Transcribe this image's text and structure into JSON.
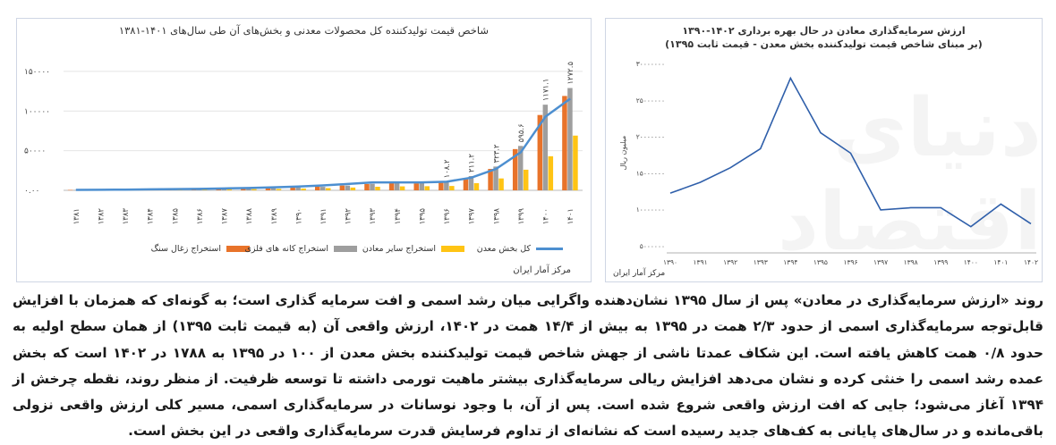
{
  "left_chart": {
    "title": "شاخص قیمت تولیدکننده کل محصولات معدنی و بخش‌های آن طی سال‌های ۱۴۰۱-۱۳۸۱",
    "source": "مرکز آمار ایران",
    "y_tick_labels": [
      "۰.۰۰",
      "۵۰۰۰۰",
      "۱۰۰۰۰۰",
      "۱۵۰۰۰۰"
    ],
    "y_tick_values": [
      0,
      500,
      1000,
      1500
    ],
    "ylim": [
      0,
      1600
    ],
    "categories": [
      "۱۳۸۱",
      "۱۳۸۲",
      "۱۳۸۳",
      "۱۳۸۴",
      "۱۳۸۵",
      "۱۳۸۶",
      "۱۳۸۷",
      "۱۳۸۸",
      "۱۳۸۹",
      "۱۳۹۰",
      "۱۳۹۱",
      "۱۳۹۲",
      "۱۳۹۳",
      "۱۳۹۴",
      "۱۳۹۵",
      "۱۳۹۶",
      "۱۳۹۷",
      "۱۳۹۸",
      "۱۳۹۹",
      "۱۴۰۰",
      "۱۴۰۱"
    ],
    "colors": {
      "coal": "#e8732a",
      "metal": "#9e9e9e",
      "other": "#ffc414",
      "total": "#4d8fd0"
    }
  },
  "chart_data": [
    {
      "type": "bar",
      "title": "شاخص قیمت تولیدکننده کل محصولات معدنی و بخش‌های آن طی سال‌های ۱۴۰۱-۱۳۸۱",
      "categories": [
        "۱۳۸۱",
        "۱۳۸۲",
        "۱۳۸۳",
        "۱۳۸۴",
        "۱۳۸۵",
        "۱۳۸۶",
        "۱۳۸۷",
        "۱۳۸۸",
        "۱۳۸۹",
        "۱۳۹۰",
        "۱۳۹۱",
        "۱۳۹۲",
        "۱۳۹۳",
        "۱۳۹۴",
        "۱۳۹۵",
        "۱۳۹۶",
        "۱۳۹۷",
        "۱۳۹۸",
        "۱۳۹۹",
        "۱۴۰۰",
        "۱۴۰۱"
      ],
      "series": [
        {
          "name": "استخراج زغال سنگ",
          "type": "bar",
          "values": [
            5,
            6,
            7,
            9,
            11,
            14,
            18,
            22,
            28,
            35,
            45,
            60,
            80,
            90,
            88,
            95,
            140,
            270,
            520,
            950,
            1190
          ]
        },
        {
          "name": "استخراج کانه های فلزی",
          "type": "bar",
          "values": [
            4,
            5,
            6,
            8,
            10,
            13,
            17,
            21,
            27,
            34,
            44,
            60,
            82,
            95,
            98,
            108,
            180,
            300,
            560,
            1080,
            1290
          ]
        },
        {
          "name": "استخراج سایر معادن",
          "type": "bar",
          "values": [
            3,
            4,
            5,
            6,
            8,
            10,
            12,
            15,
            18,
            22,
            28,
            35,
            45,
            50,
            52,
            55,
            90,
            150,
            260,
            430,
            690
          ]
        },
        {
          "name": "کل بخش معدن",
          "type": "line",
          "values": [
            6,
            7,
            9,
            12,
            15,
            19,
            24,
            30,
            38,
            48,
            62,
            80,
            100,
            100,
            100,
            109,
            160,
            270,
            480,
            930,
            1155
          ]
        }
      ],
      "data_labels": [
        {
          "category": "۱۳۹۶",
          "label": "۱۰۸.۲"
        },
        {
          "category": "۱۳۹۷",
          "label": "۲۱۱.۲"
        },
        {
          "category": "۱۳۹۸",
          "label": "۳۲۳.۲"
        },
        {
          "category": "۱۳۹۹",
          "label": "۵۹۵.۶"
        },
        {
          "category": "۱۴۰۰",
          "label": "۱۱۷۱.۱"
        },
        {
          "category": "۱۴۰۱",
          "label": "۱۲۷۲.۵"
        }
      ],
      "ylim": [
        0,
        1600
      ],
      "legend": "bottom"
    },
    {
      "type": "line",
      "title": "ارزش سرمایه‌گذاری معادن در حال بهره برداری ۱۴۰۲-۱۳۹۰",
      "subtitle": "(بر مبنای شاخص قیمت تولیدکننده بخش معدن - قیمت ثابت ۱۳۹۵)",
      "categories": [
        "۱۳۹۰",
        "۱۳۹۱",
        "۱۳۹۲",
        "۱۳۹۳",
        "۱۳۹۴",
        "۱۳۹۵",
        "۱۳۹۶",
        "۱۳۹۷",
        "۱۳۹۸",
        "۱۳۹۹",
        "۱۴۰۰",
        "۱۴۰۱",
        "۱۴۰۲"
      ],
      "series": [
        {
          "name": "",
          "values": [
            12200000,
            13700000,
            15700000,
            18300000,
            28000000,
            20500000,
            17700000,
            9900000,
            10200000,
            10200000,
            7600000,
            10700000,
            8000000
          ]
        }
      ],
      "ylabel": "میلیون ریال",
      "y_tick_labels": [
        "۵۰۰۰۰۰۰",
        "۱۰۰۰۰۰۰۰",
        "۱۵۰۰۰۰۰۰",
        "۲۰۰۰۰۰۰۰",
        "۲۵۰۰۰۰۰۰",
        "۳۰۰۰۰۰۰۰"
      ],
      "y_tick_values": [
        5000000,
        10000000,
        15000000,
        20000000,
        25000000,
        30000000
      ],
      "ylim": [
        4000000,
        31000000
      ],
      "color": "#2f5faa",
      "source": "مرکز آمار ایران"
    }
  ],
  "right_chart": {
    "title": "ارزش سرمایه‌گذاری معادن در حال بهره برداری ۱۴۰۲-۱۳۹۰",
    "subtitle": "(بر مبنای شاخص قیمت تولیدکننده بخش معدن - قیمت ثابت ۱۳۹۵)",
    "ylabel": "میلیون ریال",
    "source": "مرکز آمار ایران"
  },
  "watermark": "دنیای اقتصاد",
  "paragraph": "روند «ارزش سرمایه‌گذاری در معادن» پس از سال ۱۳۹۵ نشان‌دهنده واگرایی میان رشد اسمی و افت سرمایه گذاری است؛ به گونه‌ای که همزمان با افزایش قابل‌توجه سرمایه‌گذاری اسمی از حدود ۲/۳ همت در ۱۳۹۵ به بیش از ۱۴/۴ همت در ۱۴۰۲، ارزش واقعی آن (به قیمت ثابت ۱۳۹۵) از همان سطح اولیه به حدود ۰/۸ همت کاهش یافته است. این شکاف عمدتا ناشی از جهش شاخص قیمت تولیدکننده بخش معدن از ۱۰۰ در ۱۳۹۵ به ۱۷۸۸ در ۱۴۰۲ است که بخش عمده رشد اسمی را خنثی کرده و نشان می‌دهد افزایش ریالی سرمایه‌گذاری بیشتر ماهیت تورمی داشته تا توسعه ظرفیت. از منظر روند، نقطه چرخش از ۱۳۹۴ آغاز می‌شود؛ جایی که افت ارزش واقعی شروع شده است. پس از آن، با وجود نوسانات در سرمایه‌گذاری اسمی، مسیر کلی ارزش واقعی نزولی باقی‌مانده و در سال‌های پایانی به کف‌های جدید رسیده است که نشانه‌ای از تداوم فرسایش قدرت سرمایه‌گذاری واقعی در این بخش است."
}
